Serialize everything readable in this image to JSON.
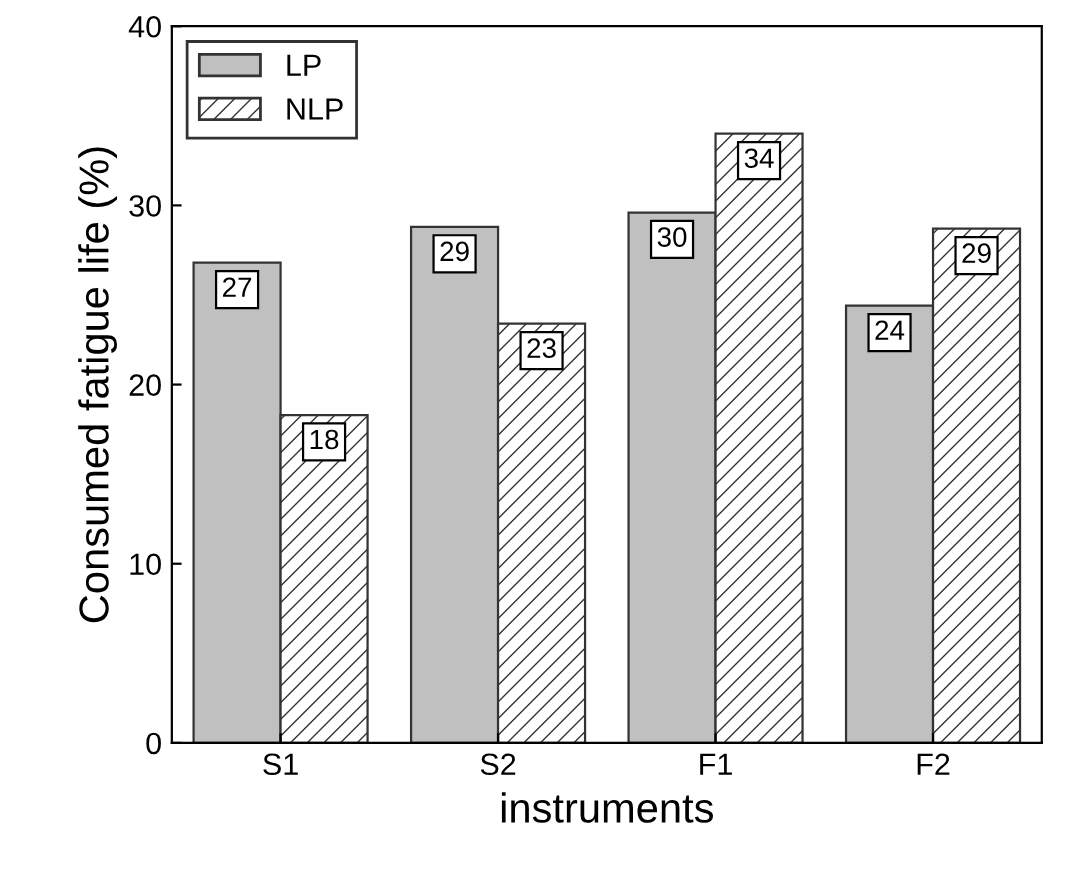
{
  "chart_data": {
    "type": "bar",
    "xlabel": "instruments",
    "ylabel": "Consumed fatigue life (%)",
    "categories": [
      "S1",
      "S2",
      "F1",
      "F2"
    ],
    "series": [
      {
        "name": "LP",
        "color": "#c0c0c0",
        "values": [
          26.8,
          28.8,
          29.6,
          24.4
        ],
        "value_labels": [
          "27",
          "29",
          "30",
          "24"
        ]
      },
      {
        "name": "NLP",
        "color": "#333333",
        "values": [
          18.3,
          23.4,
          34.0,
          28.7
        ],
        "value_labels": [
          "18",
          "23",
          "34",
          "29"
        ]
      }
    ],
    "ylim": [
      0,
      40
    ],
    "yticks": [
      0,
      10,
      20,
      30,
      40
    ],
    "grid": false,
    "legend": "top left"
  }
}
